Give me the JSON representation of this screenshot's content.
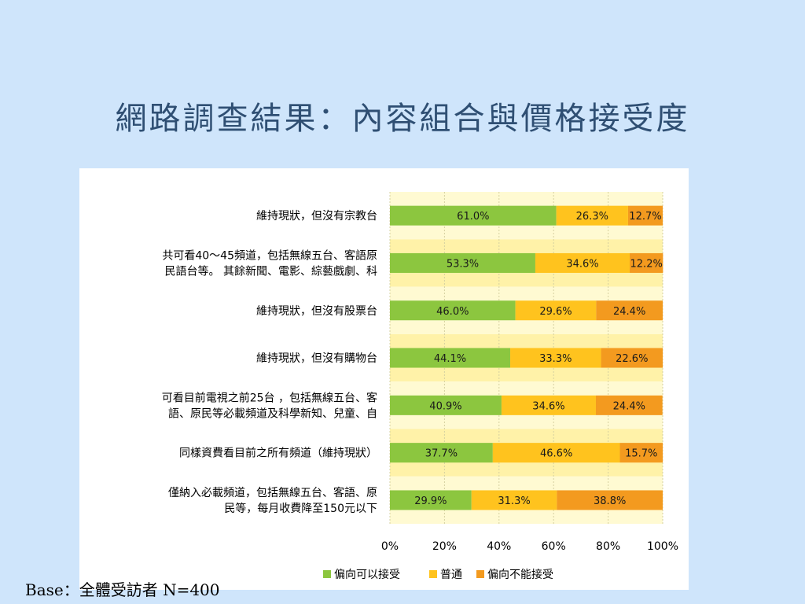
{
  "title": "網路調查結果：內容組合與價格接受度",
  "footnote": "Base：全體受訪者 N=400",
  "colors": {
    "accept": "#8cc63f",
    "neutral": "#ffc31e",
    "reject": "#f39a1f",
    "band_light": "#fffad2",
    "band_dark": "#fff2a8"
  },
  "chart_data": {
    "type": "bar",
    "orientation": "horizontal",
    "stacked": true,
    "categories": [
      [
        "維持現狀，但沒有宗教台"
      ],
      [
        "共可看40～45頻道，包括無線五台、客語原",
        "民語台等。 其餘新聞、電影、綜藝戲劇、科"
      ],
      [
        "維持現狀，但沒有股票台"
      ],
      [
        "維持現狀，但沒有購物台"
      ],
      [
        "可看目前電視之前25台 ，包括無線五台、客",
        "語、原民等必載頻道及科學新知、兒童、自"
      ],
      [
        "同樣資費看目前之所有頻道（維持現狀）"
      ],
      [
        "僅納入必載頻道，包括無線五台、客語、原",
        "民等，每月收費降至150元以下"
      ]
    ],
    "series": [
      {
        "name": "偏向可以接受",
        "values": [
          61.0,
          53.3,
          46.0,
          44.1,
          40.9,
          37.7,
          29.9
        ]
      },
      {
        "name": "普通",
        "values": [
          26.3,
          34.6,
          29.6,
          33.3,
          34.6,
          46.6,
          31.3
        ]
      },
      {
        "name": "偏向不能接受",
        "values": [
          12.7,
          12.2,
          24.4,
          22.6,
          24.4,
          15.7,
          38.8
        ]
      }
    ],
    "value_labels": [
      [
        "61.0%",
        "26.3%",
        "12.7%"
      ],
      [
        "53.3%",
        "34.6%",
        "12.2%"
      ],
      [
        "46.0%",
        "29.6%",
        "24.4%"
      ],
      [
        "44.1%",
        "33.3%",
        "22.6%"
      ],
      [
        "40.9%",
        "34.6%",
        "24.4%"
      ],
      [
        "37.7%",
        "46.6%",
        "15.7%"
      ],
      [
        "29.9%",
        "31.3%",
        "38.8%"
      ]
    ],
    "x_ticks": [
      "0%",
      "20%",
      "40%",
      "60%",
      "80%",
      "100%"
    ],
    "xlim": [
      0,
      100
    ],
    "grid": true,
    "legend_position": "bottom"
  }
}
